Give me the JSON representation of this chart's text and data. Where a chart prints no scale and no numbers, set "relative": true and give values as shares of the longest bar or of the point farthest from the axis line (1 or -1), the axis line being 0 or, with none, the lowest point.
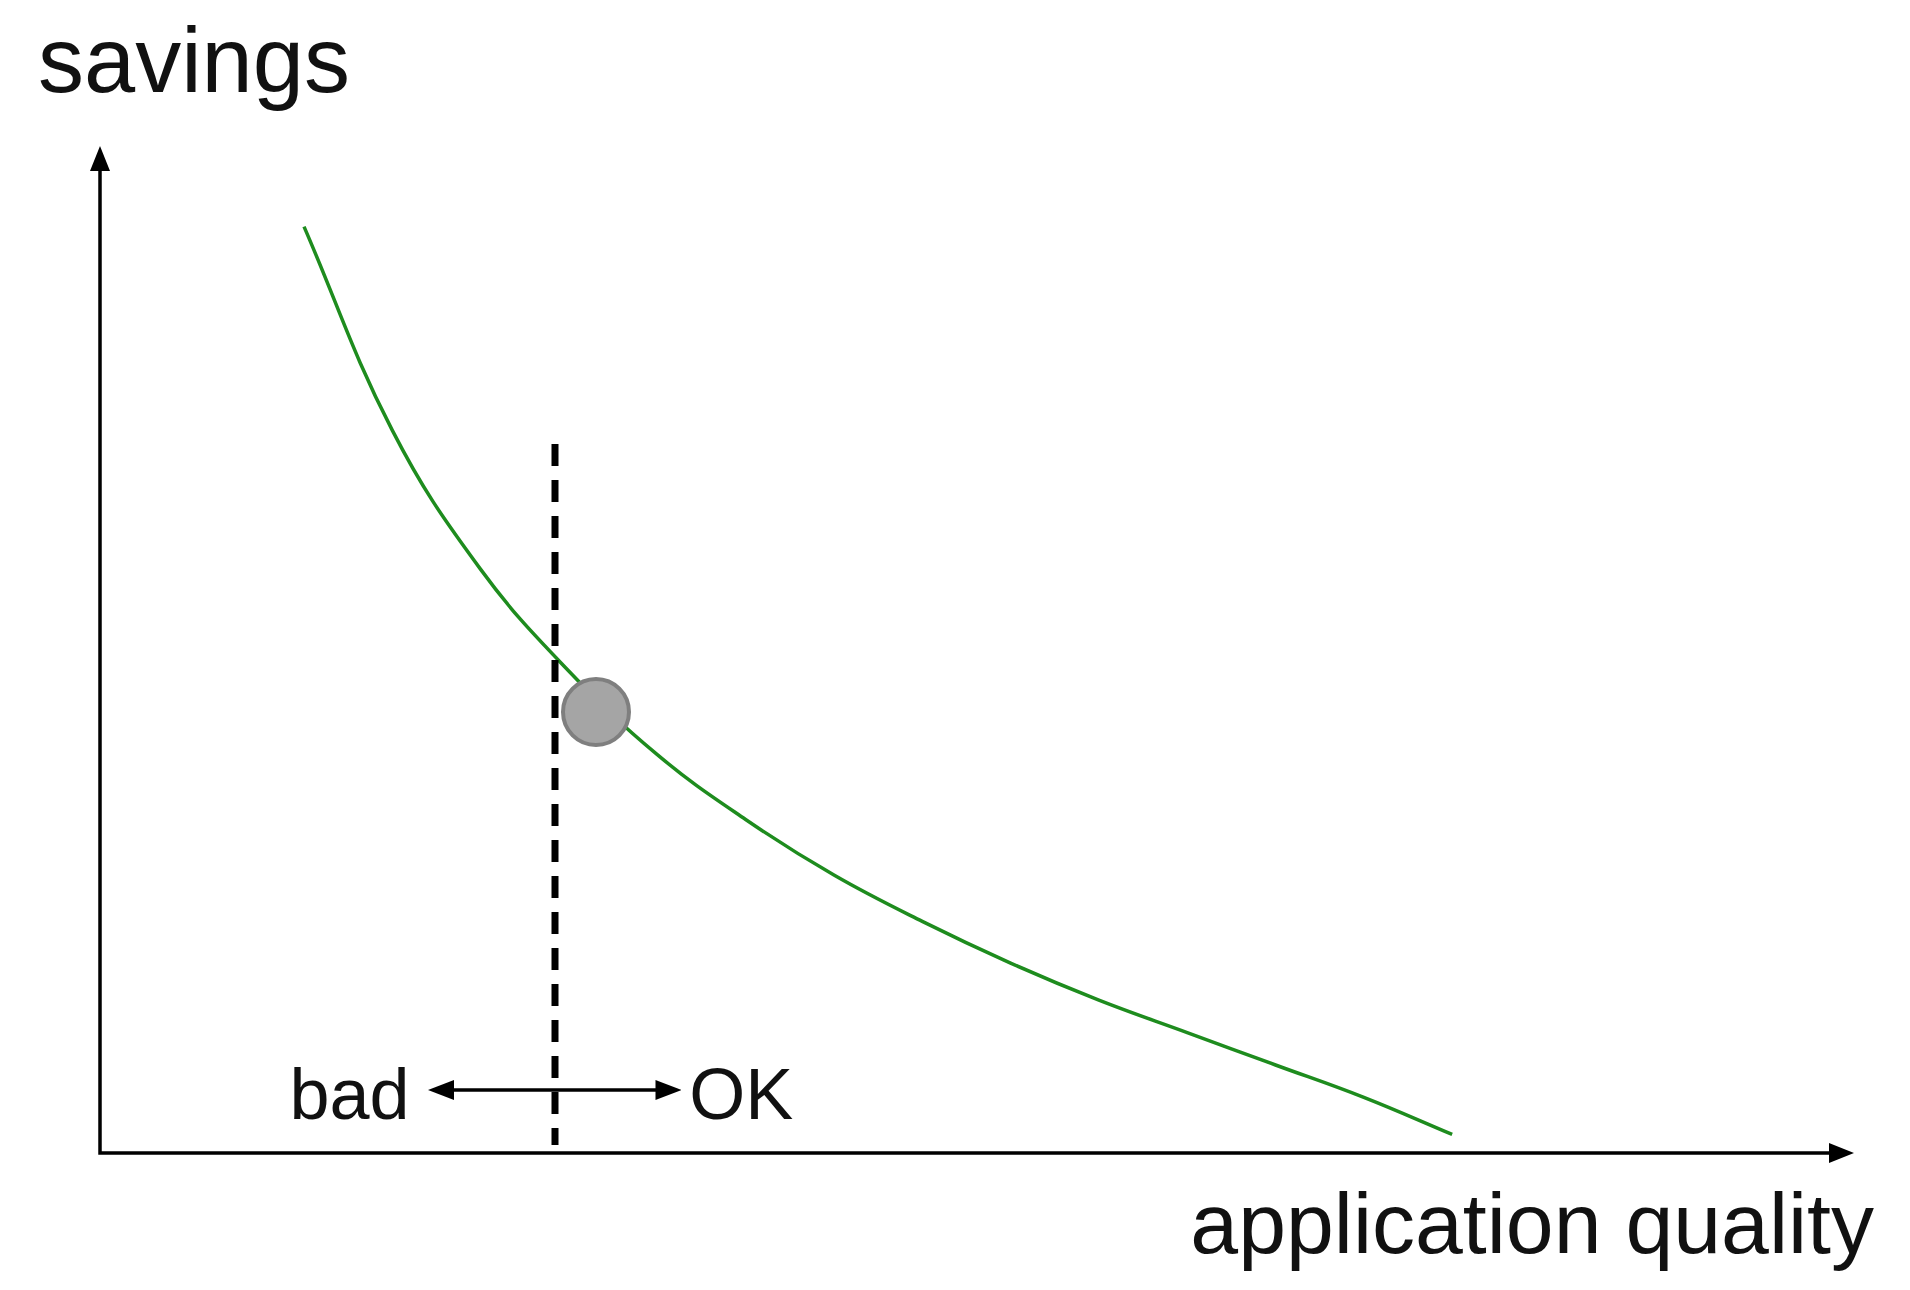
{
  "chart_data": {
    "type": "line",
    "relative": true,
    "tick_labels": false,
    "xlabel": "application quality",
    "ylabel": "savings",
    "categories": [
      null,
      null,
      null,
      null,
      null,
      null,
      null,
      null,
      null,
      null,
      null,
      null,
      null,
      null
    ],
    "values": [
      1,
      0.78,
      0.63,
      0.52,
      0.43,
      0.36,
      0.3,
      0.25,
      0.205,
      0.165,
      0.13,
      0.095,
      0.06,
      0.02
    ],
    "color": "#1e8c1e",
    "annotations": [
      "bad",
      "OK"
    ]
  }
}
